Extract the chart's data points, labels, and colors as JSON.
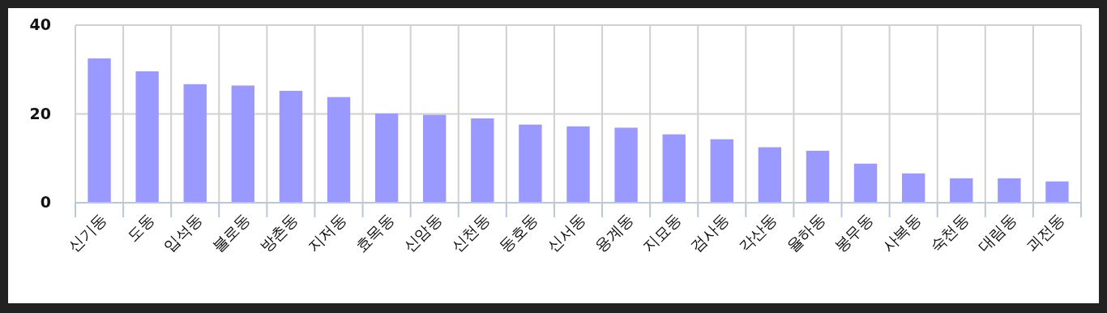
{
  "chart_data": {
    "type": "bar",
    "categories": [
      "신기동",
      "도동",
      "입석동",
      "불로동",
      "방촌동",
      "지저동",
      "효목동",
      "신암동",
      "신천동",
      "동호동",
      "신서동",
      "용계동",
      "지묘동",
      "검사동",
      "각산동",
      "율하동",
      "봉무동",
      "사복동",
      "숙천동",
      "대림동",
      "괴전동"
    ],
    "values": [
      32.5,
      29.6,
      26.7,
      26.4,
      25.2,
      23.8,
      20.1,
      19.8,
      19.0,
      17.6,
      17.2,
      16.9,
      15.4,
      14.3,
      12.5,
      11.7,
      8.8,
      6.6,
      5.5,
      5.5,
      4.8
    ],
    "color": "#9999ff",
    "ylim": [
      0,
      40
    ],
    "yticks": [
      0,
      20,
      40
    ],
    "grid": true
  }
}
